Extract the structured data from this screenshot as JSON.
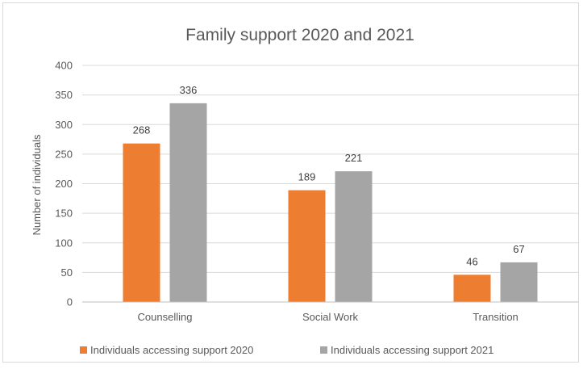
{
  "chart_data": {
    "type": "bar",
    "title": "Family support 2020 and 2021",
    "xlabel": "",
    "ylabel": "Number of individuals",
    "categories": [
      "Counselling",
      "Social Work",
      "Transition"
    ],
    "series": [
      {
        "name": "Individuals accessing support 2020",
        "values": [
          268,
          189,
          46
        ],
        "color": "#ed7d31"
      },
      {
        "name": "Individuals accessing support 2021",
        "values": [
          336,
          221,
          67
        ],
        "color": "#a5a5a5"
      }
    ],
    "ylim": [
      0,
      400
    ],
    "yticks": [
      0,
      50,
      100,
      150,
      200,
      250,
      300,
      350,
      400
    ],
    "grid": true,
    "legend": "bottom",
    "data_labels": true
  }
}
